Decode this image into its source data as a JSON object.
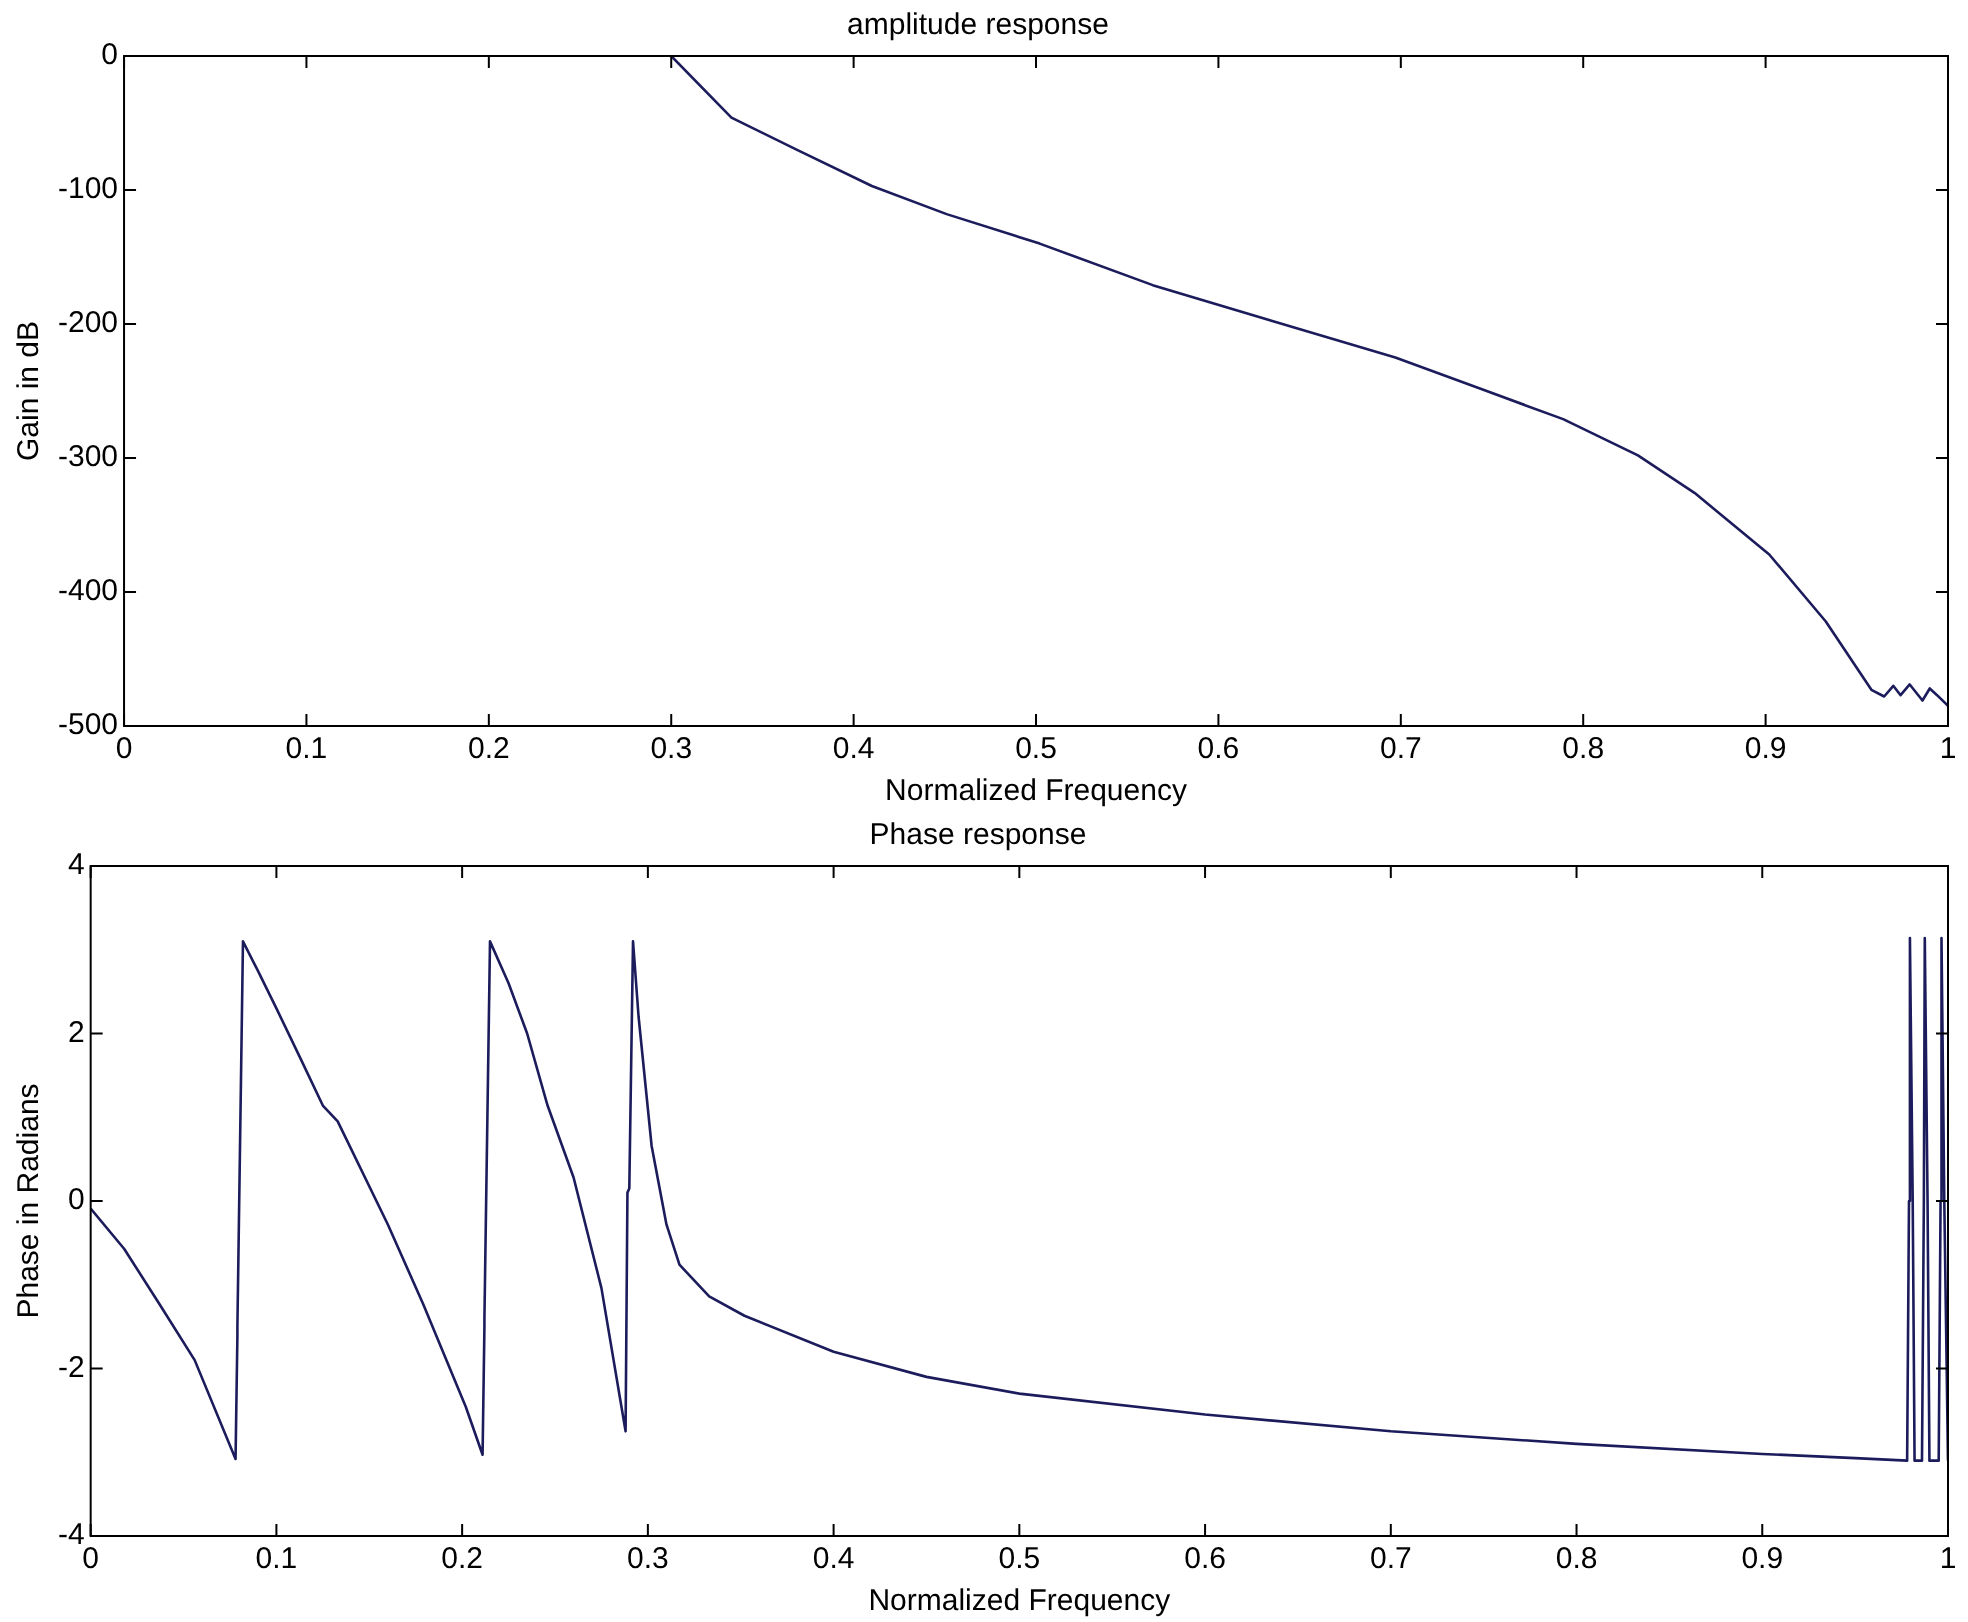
{
  "chart_data": [
    {
      "type": "line",
      "title": "amplitude response",
      "xlabel": "Normalized Frequency",
      "ylabel": "Gain in dB",
      "xlim": [
        0,
        1
      ],
      "ylim": [
        -500,
        0
      ],
      "xticks": [
        0,
        0.1,
        0.2,
        0.3,
        0.4,
        0.5,
        0.6,
        0.7,
        0.8,
        0.9,
        1
      ],
      "yticks": [
        -500,
        -400,
        -300,
        -200,
        -100,
        0
      ],
      "grid": false,
      "series": [
        {
          "color": "#1c1c5c",
          "x": [
            0.3,
            0.333,
            0.369,
            0.41,
            0.451,
            0.502,
            0.564,
            0.63,
            0.697,
            0.743,
            0.789,
            0.83,
            0.861,
            0.902,
            0.933,
            0.958,
            0.965,
            0.97,
            0.974,
            0.979,
            0.986,
            0.99,
            0.994,
            1
          ],
          "values": [
            0,
            -46,
            -70,
            -97,
            -118,
            -140,
            -171,
            -198,
            -225,
            -248,
            -271,
            -298,
            -326,
            -372,
            -422,
            -473,
            -478,
            -470,
            -477,
            -469,
            -481,
            -472,
            -477,
            -485
          ]
        }
      ]
    },
    {
      "type": "line",
      "title": "Phase response",
      "xlabel": "Normalized Frequency",
      "ylabel": "Phase in Radians",
      "xlim": [
        0,
        1
      ],
      "ylim": [
        -4,
        4
      ],
      "xticks": [
        0,
        0.1,
        0.2,
        0.3,
        0.4,
        0.5,
        0.6,
        0.7,
        0.8,
        0.9,
        1
      ],
      "yticks": [
        -4,
        -2,
        0,
        2,
        4
      ],
      "grid": false,
      "series": [
        {
          "color": "#1c1c5c",
          "x": [
            0,
            0.018,
            0.037,
            0.056,
            0.078,
            0.079,
            0.079,
            0.082,
            0.09,
            0.1,
            0.113,
            0.125,
            0.133,
            0.16,
            0.179,
            0.202,
            0.211,
            0.212,
            0.212,
            0.215,
            0.225,
            0.235,
            0.246,
            0.26,
            0.275,
            0.288,
            0.289,
            0.29,
            0.292,
            0.295,
            0.302,
            0.31,
            0.317,
            0.333,
            0.352,
            0.4,
            0.45,
            0.5,
            0.6,
            0.7,
            0.8,
            0.9,
            0.95,
            0.978,
            0.979,
            0.9795,
            0.981,
            0.982,
            0.986,
            0.987,
            0.9875,
            0.989,
            0.99,
            0.995,
            0.996,
            0.9965,
            0.998,
            1
          ],
          "values": [
            -0.09,
            -0.57,
            -1.23,
            -1.9,
            -3.08,
            -1.61,
            -1.5,
            3.1,
            2.75,
            2.3,
            1.7,
            1.14,
            0.95,
            -0.28,
            -1.23,
            -2.46,
            -3.03,
            -1.5,
            -1.4,
            3.1,
            2.6,
            2,
            1.14,
            0.28,
            -1.04,
            -2.75,
            0.1,
            0.15,
            3.1,
            2.2,
            0.66,
            -0.28,
            -0.76,
            -1.14,
            -1.37,
            -1.8,
            -2.1,
            -2.3,
            -2.55,
            -2.75,
            -2.9,
            -3.02,
            -3.07,
            -3.1,
            0,
            3.14,
            0,
            -3.1,
            -3.1,
            0,
            3.14,
            0,
            -3.1,
            -3.1,
            0,
            3.14,
            0,
            -3.1
          ]
        }
      ]
    }
  ]
}
